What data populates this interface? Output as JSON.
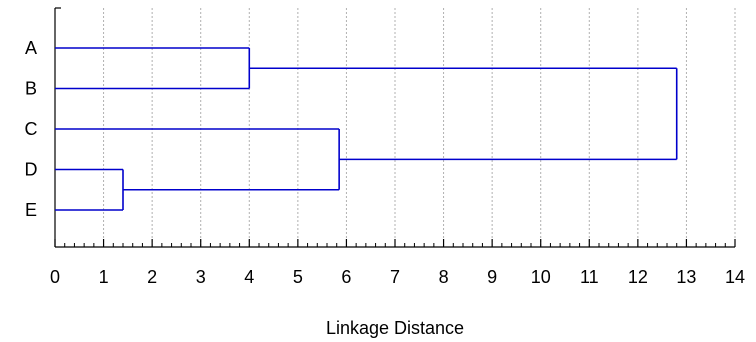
{
  "chart_data": {
    "type": "dendrogram",
    "orientation": "horizontal",
    "leaves": [
      "A",
      "B",
      "C",
      "D",
      "E"
    ],
    "merges": [
      {
        "left": "D",
        "right": "E",
        "distance": 1.4
      },
      {
        "left": "A",
        "right": "B",
        "distance": 4.0
      },
      {
        "left": "C",
        "right": "D+E",
        "distance": 5.85
      },
      {
        "left": "A+B",
        "right": "C+D+E",
        "distance": 12.8
      }
    ],
    "xlabel": "Linkage Distance",
    "xlim": [
      0,
      14
    ],
    "xticks": [
      "0",
      "1",
      "2",
      "3",
      "4",
      "5",
      "6",
      "7",
      "8",
      "9",
      "10",
      "11",
      "12",
      "13",
      "14"
    ],
    "minor_ticks_per_major": 4,
    "grid": "vertical dotted",
    "line_color": "#0000cc",
    "grid_color": "#b0b0b0"
  }
}
